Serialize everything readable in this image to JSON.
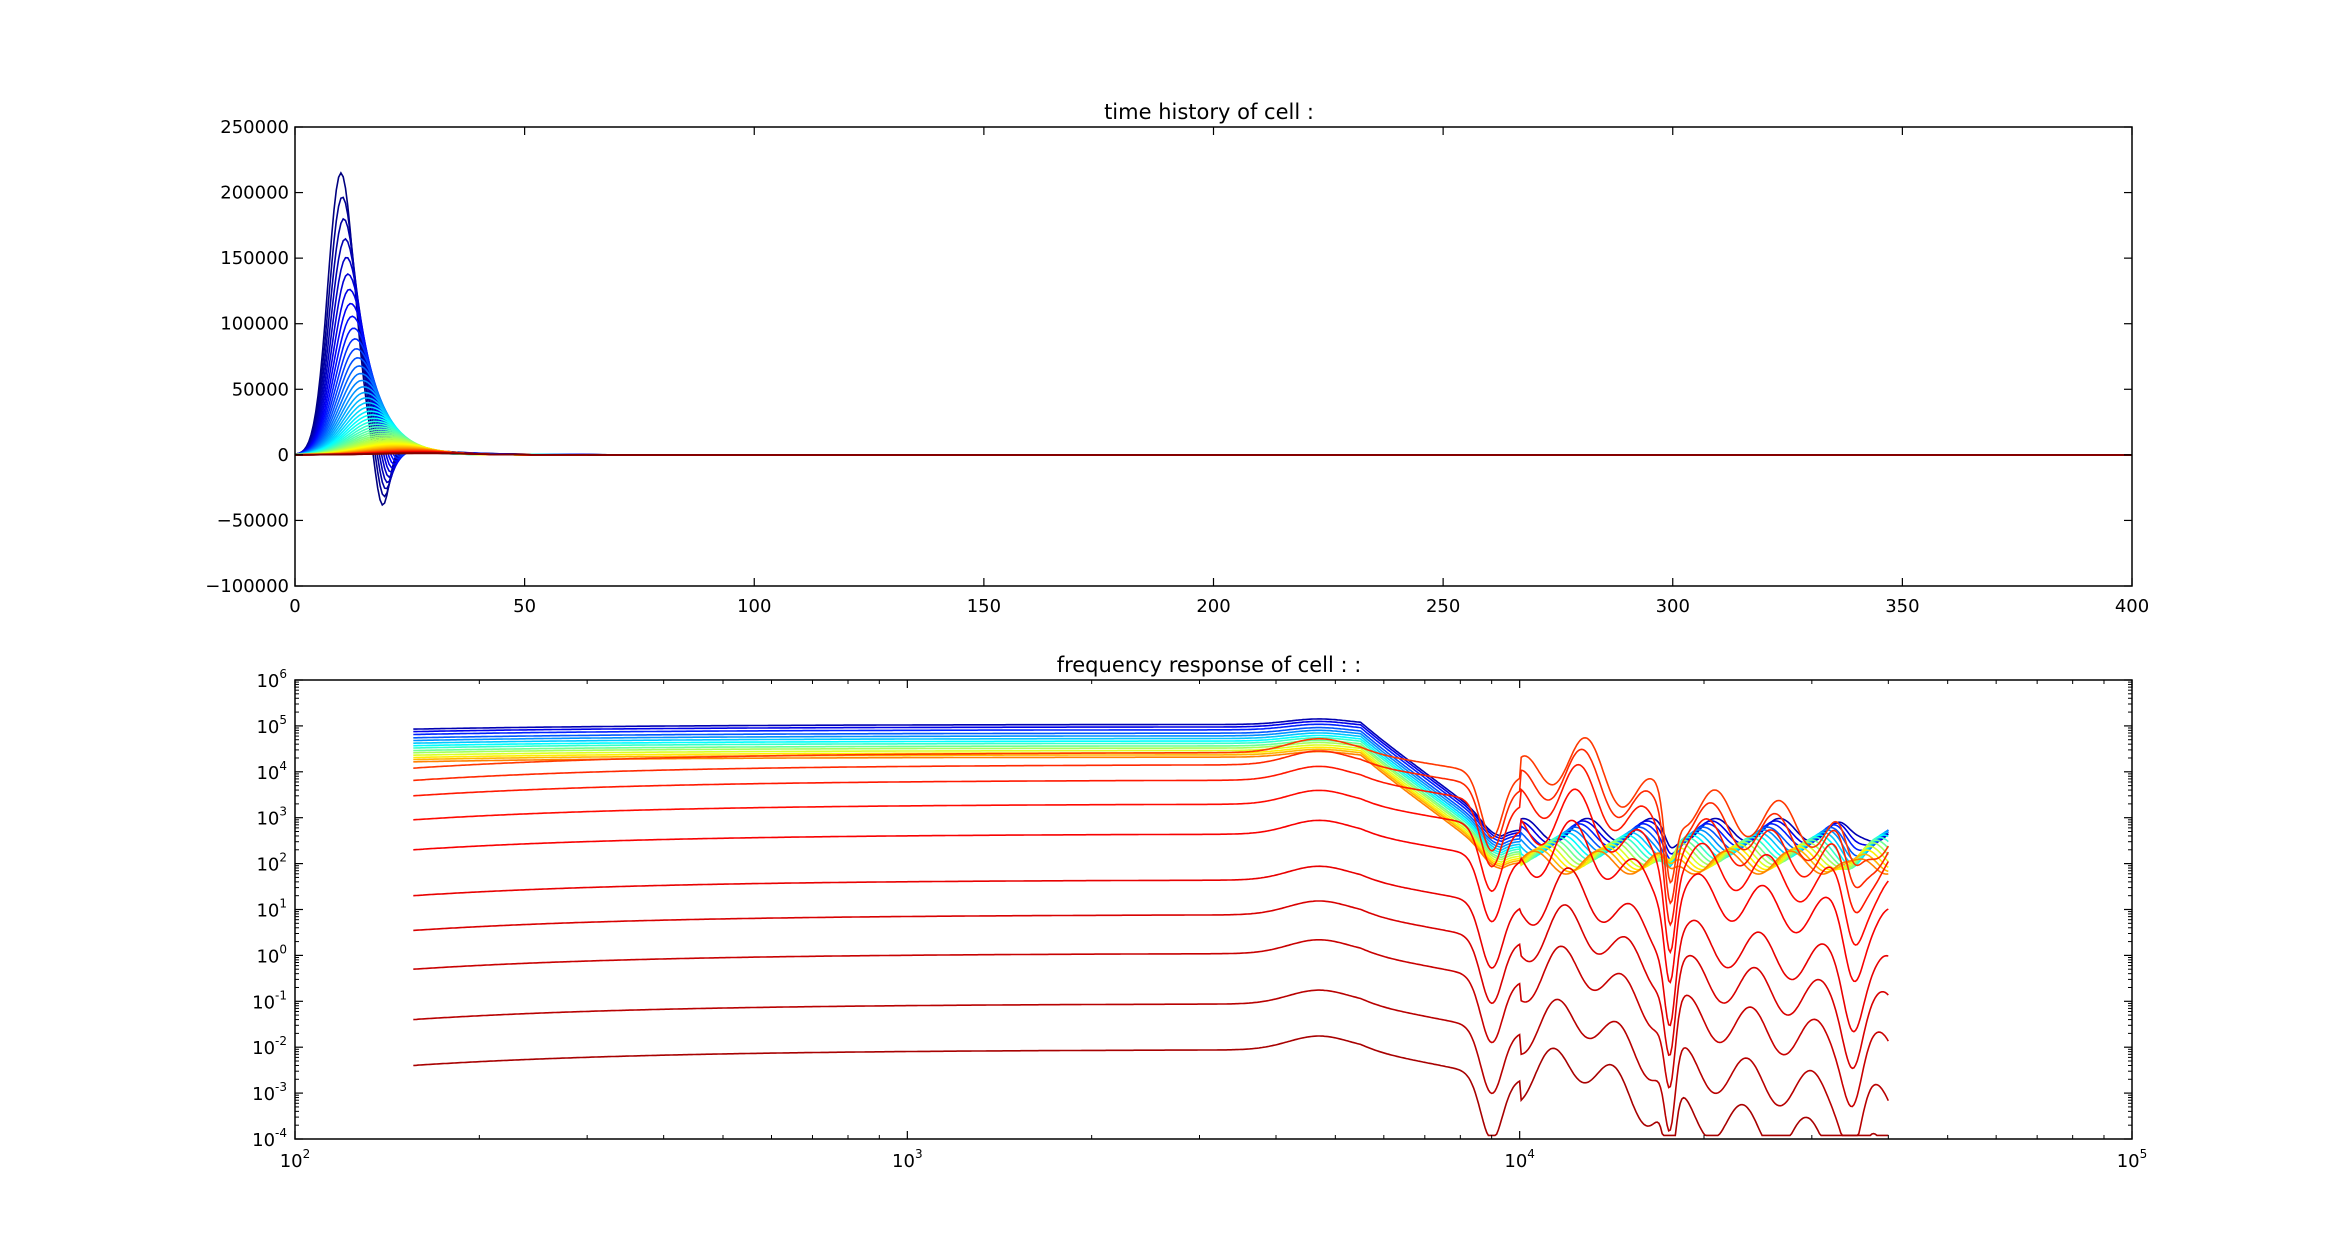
{
  "chart_data": [
    {
      "type": "line",
      "title": "time history of cell :",
      "xlabel": "",
      "ylabel": "",
      "xlim": [
        0,
        400
      ],
      "ylim": [
        -100000,
        250000
      ],
      "x_ticks": [
        0,
        50,
        100,
        150,
        200,
        250,
        300,
        350,
        400
      ],
      "y_ticks": [
        -100000,
        -50000,
        0,
        50000,
        100000,
        150000,
        200000,
        250000
      ],
      "x_tick_labels": [
        "0",
        "50",
        "100",
        "150",
        "200",
        "250",
        "300",
        "350",
        "400"
      ],
      "y_tick_labels": [
        "−100000",
        "−50000",
        "0",
        "50000",
        "100000",
        "150000",
        "200000",
        "250000"
      ],
      "grid": false,
      "legend": "none",
      "colormap": "jet",
      "series_count": 60,
      "series_shape": {
        "description": "family of pulse responses at t≈10 with undershoot near t≈19, decaying to 0 by t≈60; peak amplitude decreases from blue to red",
        "t": [
          0,
          5,
          10,
          15,
          19,
          25,
          35,
          45,
          60,
          400
        ],
        "max_peak": 215000,
        "max_trough": -50000
      }
    },
    {
      "type": "line",
      "title": "frequency response of cell : :",
      "xlabel": "",
      "ylabel": "",
      "xscale": "log",
      "yscale": "log",
      "xlim": [
        100,
        100000
      ],
      "ylim": [
        0.0001,
        1000000
      ],
      "x_tick_labels": [
        {
          "base": "10",
          "exp": "2"
        },
        {
          "base": "10",
          "exp": "3"
        },
        {
          "base": "10",
          "exp": "4"
        },
        {
          "base": "10",
          "exp": "5"
        }
      ],
      "y_tick_labels": [
        {
          "base": "10",
          "exp": "-4"
        },
        {
          "base": "10",
          "exp": "-3"
        },
        {
          "base": "10",
          "exp": "-2"
        },
        {
          "base": "10",
          "exp": "-1"
        },
        {
          "base": "10",
          "exp": "0"
        },
        {
          "base": "10",
          "exp": "1"
        },
        {
          "base": "10",
          "exp": "2"
        },
        {
          "base": "10",
          "exp": "3"
        },
        {
          "base": "10",
          "exp": "4"
        },
        {
          "base": "10",
          "exp": "5"
        },
        {
          "base": "10",
          "exp": "6"
        }
      ],
      "grid": false,
      "legend": "none",
      "colormap": "jet",
      "x_range_of_data": [
        156,
        40000
      ],
      "blue_family_levels_start": [
        85000,
        75000,
        65000,
        55000,
        48000,
        42000,
        37000,
        33000,
        29000,
        26000,
        23000,
        20500,
        18500,
        16500
      ],
      "red_family_levels_start": [
        12000,
        6500,
        3000,
        900,
        200,
        20,
        3.5,
        0.5,
        0.04,
        0.004
      ]
    }
  ]
}
